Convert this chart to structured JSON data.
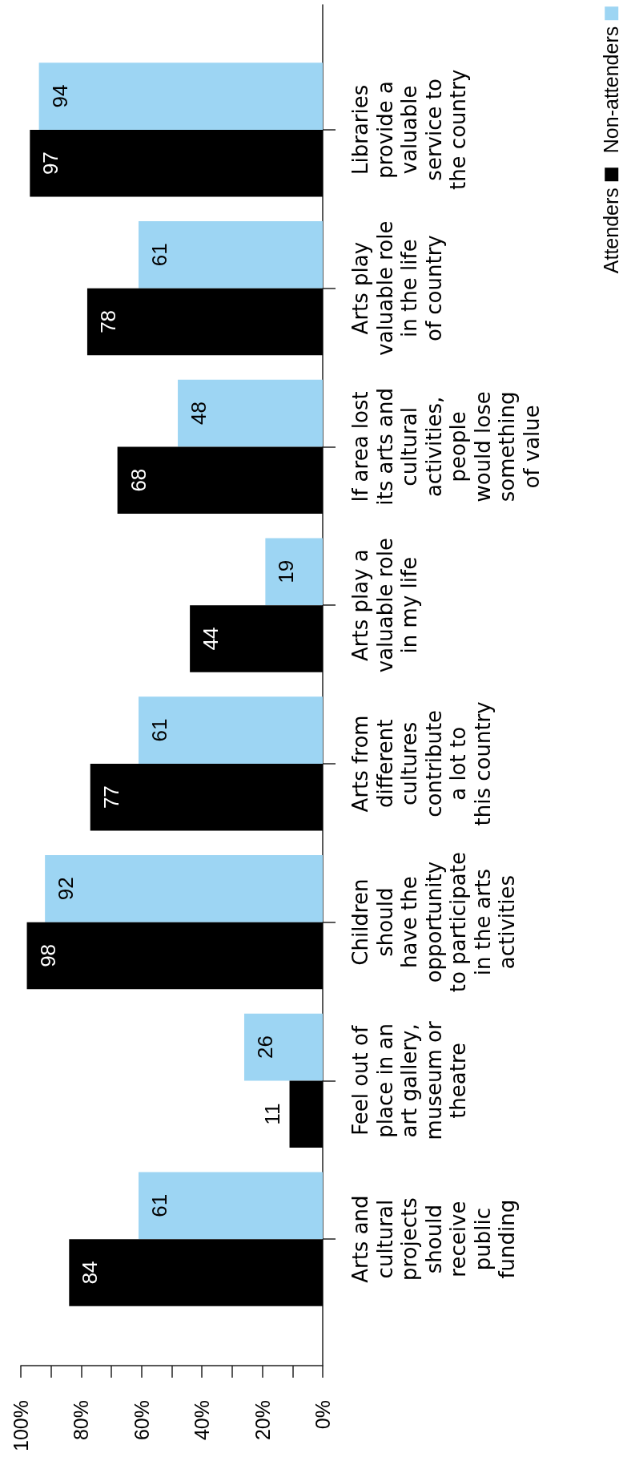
{
  "chart_data": {
    "type": "bar",
    "orientation": "horizontal",
    "categories": [
      "Libraries\nprovide a\nvaluable\nservice to\nthe country",
      "Arts play\nvaluable role\nin the life\nof country",
      "If area lost\nits arts and\ncultural\nactivities,\npeople\nwould lose\nsomething\nof value",
      "Arts play a\nvaluable role\nin my life",
      "Arts from\ndifferent\ncultures\ncontribute\na lot to\nthis country",
      "Children\nshould\nhave the\nopportunity\nto participate\nin the arts\nactivities",
      "Feel out of\nplace in an\nart gallery,\nmuseum or\ntheatre",
      "Arts and\ncultural\nprojects\nshould\nreceive\npublic\nfunding"
    ],
    "series": [
      {
        "name": "Attenders",
        "color": "#000000",
        "values": [
          97,
          78,
          68,
          44,
          77,
          98,
          11,
          84
        ]
      },
      {
        "name": "Non-attenders",
        "color": "#9dd5f3",
        "values": [
          94,
          61,
          48,
          19,
          61,
          92,
          26,
          61
        ]
      }
    ],
    "xlim": [
      100,
      0
    ],
    "xticks": [
      {
        "value": 0,
        "label": "0%"
      },
      {
        "value": 10,
        "label": null
      },
      {
        "value": 20,
        "label": "20%"
      },
      {
        "value": 30,
        "label": null
      },
      {
        "value": 40,
        "label": "40%"
      },
      {
        "value": 50,
        "label": null
      },
      {
        "value": 60,
        "label": "60%"
      },
      {
        "value": 70,
        "label": null
      },
      {
        "value": 80,
        "label": "80%"
      },
      {
        "value": 90,
        "label": null
      },
      {
        "value": 100,
        "label": "100%"
      }
    ],
    "data_labels": true,
    "legend": "top right"
  }
}
